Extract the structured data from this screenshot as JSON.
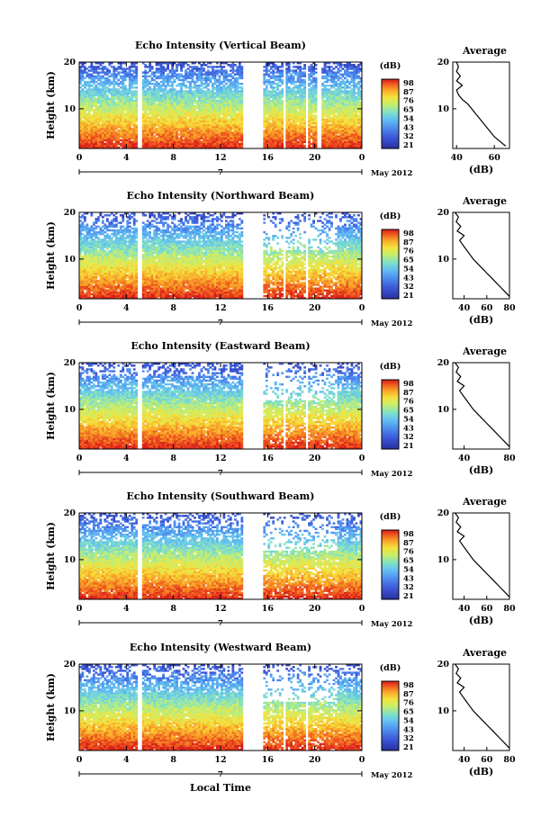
{
  "chart_data": [
    {
      "type": "heatmap",
      "title": "Echo Intensity (Vertical Beam)",
      "ylabel": "Height (km)",
      "yticks": [
        "20",
        "10"
      ],
      "ylim": [
        1.5,
        20
      ],
      "xticks": [
        "0",
        "4",
        "8",
        "12",
        "16",
        "20",
        "0"
      ],
      "xlim": [
        0,
        24
      ],
      "day_label": "7",
      "month_label": "May 2012",
      "colorbar": {
        "unit": "(dB)",
        "ticks": [
          "98",
          "87",
          "76",
          "65",
          "54",
          "43",
          "32",
          "21"
        ],
        "range": [
          21,
          98
        ]
      },
      "gaps_hours": [
        [
          5.0,
          5.4
        ],
        [
          14.0,
          15.6
        ],
        [
          17.3,
          17.6
        ],
        [
          19.2,
          19.5
        ],
        [
          20.2,
          20.6
        ]
      ],
      "top_km": 20,
      "average_profile": {
        "title": "Average",
        "xlabel": "(dB)",
        "xticks": [
          "40",
          "60"
        ],
        "yticks": [
          "20",
          "10"
        ],
        "xlim": [
          38,
          68
        ],
        "height_km": [
          2,
          3,
          4,
          5,
          6,
          7,
          8,
          9,
          10,
          11,
          12,
          13,
          14,
          15,
          16,
          17,
          18,
          19,
          20
        ],
        "values_db": [
          66,
          63,
          60,
          58,
          56,
          54,
          52,
          50,
          48,
          46,
          43,
          41,
          40,
          43,
          40,
          42,
          40,
          41,
          40
        ]
      }
    },
    {
      "type": "heatmap",
      "title": "Echo Intensity (Northward Beam)",
      "ylabel": "Height (km)",
      "yticks": [
        "20",
        "10"
      ],
      "ylim": [
        1.5,
        20
      ],
      "xticks": [
        "0",
        "4",
        "8",
        "12",
        "16",
        "20",
        "0"
      ],
      "xlim": [
        0,
        24
      ],
      "day_label": "7",
      "month_label": "May 2012",
      "colorbar": {
        "unit": "(dB)",
        "ticks": [
          "98",
          "87",
          "76",
          "65",
          "54",
          "43",
          "32",
          "21"
        ],
        "range": [
          21,
          98
        ]
      },
      "gaps_hours": [
        [
          5.0,
          5.4
        ],
        [
          14.0,
          15.6
        ],
        [
          17.3,
          17.6
        ],
        [
          19.2,
          19.5
        ]
      ],
      "top_km": 18,
      "average_profile": {
        "title": "Average",
        "xlabel": "(dB)",
        "xticks": [
          "40",
          "60",
          "80"
        ],
        "yticks": [
          "20",
          "10"
        ],
        "xlim": [
          30,
          80
        ],
        "height_km": [
          2,
          3,
          4,
          5,
          6,
          7,
          8,
          9,
          10,
          11,
          12,
          13,
          14,
          15,
          16,
          17,
          18,
          19,
          20
        ],
        "values_db": [
          80,
          76,
          72,
          68,
          64,
          60,
          56,
          52,
          48,
          45,
          42,
          39,
          36,
          40,
          34,
          37,
          33,
          35,
          32
        ]
      }
    },
    {
      "type": "heatmap",
      "title": "Echo Intensity (Eastward Beam)",
      "ylabel": "Height (km)",
      "yticks": [
        "20",
        "10"
      ],
      "ylim": [
        1.5,
        20
      ],
      "xticks": [
        "0",
        "4",
        "8",
        "12",
        "16",
        "20",
        "0"
      ],
      "xlim": [
        0,
        24
      ],
      "day_label": "7",
      "month_label": "May 2012",
      "colorbar": {
        "unit": "(dB)",
        "ticks": [
          "98",
          "87",
          "76",
          "65",
          "54",
          "43",
          "32",
          "21"
        ],
        "range": [
          21,
          98
        ]
      },
      "gaps_hours": [
        [
          5.0,
          5.4
        ],
        [
          14.0,
          15.6
        ],
        [
          17.3,
          17.6
        ],
        [
          19.2,
          19.5
        ]
      ],
      "top_km": 18,
      "average_profile": {
        "title": "Average",
        "xlabel": "(dB)",
        "xticks": [
          "40",
          "80"
        ],
        "yticks": [
          "20",
          "10"
        ],
        "xlim": [
          30,
          80
        ],
        "height_km": [
          2,
          3,
          4,
          5,
          6,
          7,
          8,
          9,
          10,
          11,
          12,
          13,
          14,
          15,
          16,
          17,
          18,
          19,
          20
        ],
        "values_db": [
          80,
          76,
          72,
          68,
          64,
          60,
          56,
          52,
          48,
          45,
          42,
          39,
          36,
          40,
          34,
          37,
          33,
          35,
          32
        ]
      }
    },
    {
      "type": "heatmap",
      "title": "Echo Intensity (Southward Beam)",
      "ylabel": "Height (km)",
      "yticks": [
        "20",
        "10"
      ],
      "ylim": [
        1.5,
        20
      ],
      "xticks": [
        "0",
        "4",
        "8",
        "12",
        "16",
        "20",
        "0"
      ],
      "xlim": [
        0,
        24
      ],
      "day_label": "7",
      "month_label": "May 2012",
      "colorbar": {
        "unit": "(dB)",
        "ticks": [
          "98",
          "87",
          "76",
          "65",
          "54",
          "43",
          "32",
          "21"
        ],
        "range": [
          21,
          98
        ]
      },
      "gaps_hours": [
        [
          5.0,
          5.4
        ],
        [
          14.0,
          15.6
        ]
      ],
      "top_km": 18,
      "average_profile": {
        "title": "Average",
        "xlabel": "(dB)",
        "xticks": [
          "40",
          "60",
          "80"
        ],
        "yticks": [
          "20",
          "10"
        ],
        "xlim": [
          30,
          80
        ],
        "height_km": [
          2,
          3,
          4,
          5,
          6,
          7,
          8,
          9,
          10,
          11,
          12,
          13,
          14,
          15,
          16,
          17,
          18,
          19,
          20
        ],
        "values_db": [
          80,
          76,
          72,
          68,
          64,
          60,
          56,
          52,
          48,
          45,
          42,
          39,
          36,
          40,
          34,
          37,
          33,
          35,
          32
        ]
      }
    },
    {
      "type": "heatmap",
      "title": "Echo Intensity (Westward Beam)",
      "ylabel": "Height (km)",
      "yticks": [
        "20",
        "10"
      ],
      "ylim": [
        1.5,
        20
      ],
      "xticks": [
        "0",
        "4",
        "8",
        "12",
        "16",
        "20",
        "0"
      ],
      "xlim": [
        0,
        24
      ],
      "day_label": "7",
      "month_label": "May 2012",
      "colorbar": {
        "unit": "(dB)",
        "ticks": [
          "98",
          "87",
          "76",
          "65",
          "54",
          "43",
          "32",
          "21"
        ],
        "range": [
          21,
          98
        ]
      },
      "gaps_hours": [
        [
          5.0,
          5.4
        ],
        [
          14.0,
          15.6
        ],
        [
          17.3,
          17.6
        ],
        [
          19.2,
          19.5
        ]
      ],
      "top_km": 18,
      "average_profile": {
        "title": "Average",
        "xlabel": "(dB)",
        "xticks": [
          "40",
          "60",
          "80"
        ],
        "yticks": [
          "20",
          "10"
        ],
        "xlim": [
          30,
          80
        ],
        "height_km": [
          2,
          3,
          4,
          5,
          6,
          7,
          8,
          9,
          10,
          11,
          12,
          13,
          14,
          15,
          16,
          17,
          18,
          19,
          20
        ],
        "values_db": [
          80,
          76,
          72,
          68,
          64,
          60,
          56,
          52,
          48,
          45,
          42,
          39,
          36,
          40,
          34,
          37,
          33,
          35,
          32
        ]
      }
    }
  ],
  "figure": {
    "bottom_xlabel": "Local Time",
    "colormap": [
      "#2b2f9e",
      "#3a55d6",
      "#4f8ef0",
      "#63c0f2",
      "#7fe0c8",
      "#c8ee6a",
      "#f6e23c",
      "#f8a82a",
      "#f05a1e",
      "#d7191c"
    ]
  }
}
